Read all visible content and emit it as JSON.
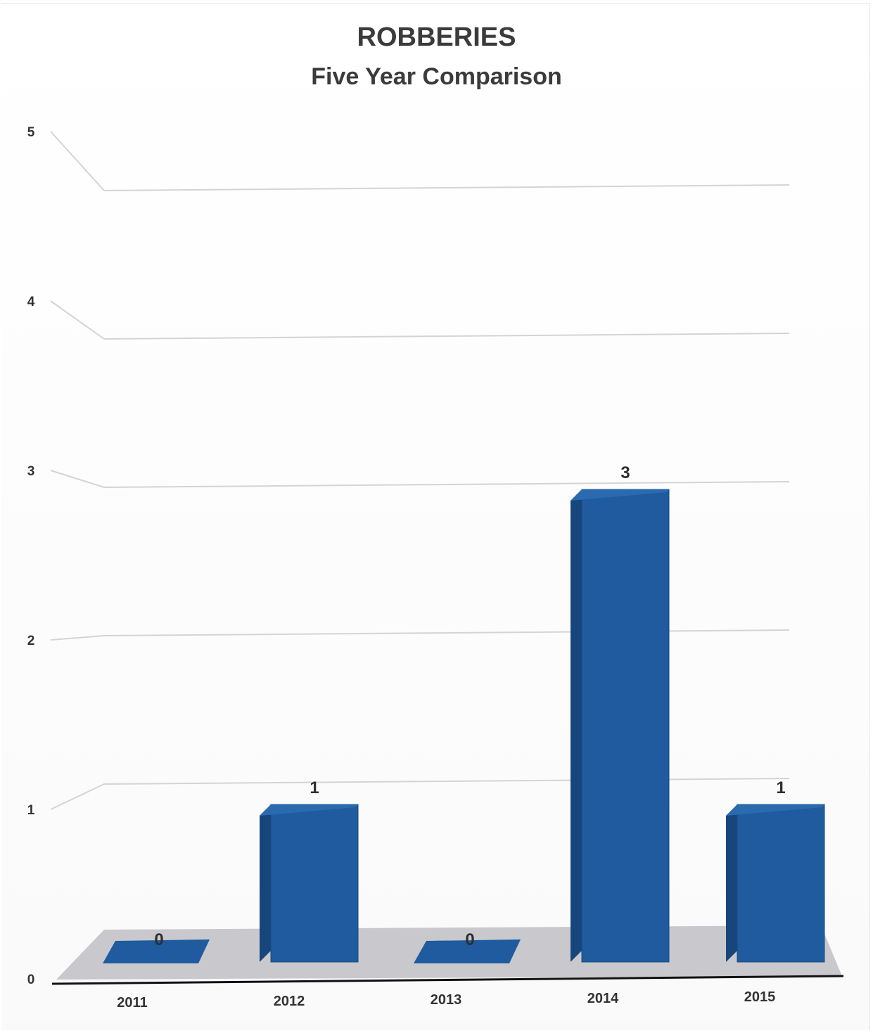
{
  "chart_data": {
    "type": "bar",
    "title": "ROBBERIES",
    "subtitle": "Five Year Comparison",
    "categories": [
      "2011",
      "2012",
      "2013",
      "2014",
      "2015"
    ],
    "values": [
      0,
      1,
      0,
      3,
      1
    ],
    "data_labels": [
      "0",
      "1",
      "0",
      "3",
      "1"
    ],
    "ylim": [
      0,
      5
    ],
    "yticks": [
      "0",
      "1",
      "2",
      "3",
      "4",
      "5"
    ],
    "grid": true,
    "style": "3d-column",
    "colors": {
      "bar": "#1f5b9e",
      "bar_side": "#17467c",
      "bar_top": "#2a6bb0",
      "floor": "#c9c9cd",
      "grid": "#d4d4d4"
    }
  }
}
